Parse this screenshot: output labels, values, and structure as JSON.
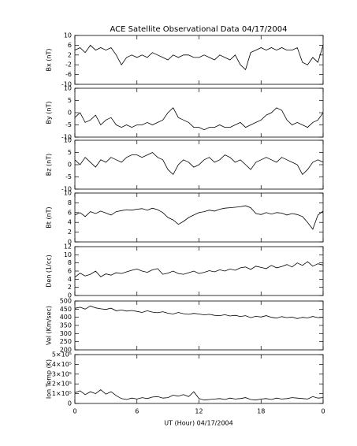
{
  "chart_data": {
    "type": "line",
    "title": "ACE Satellite Observational Data   04/17/2004",
    "xlabel": "UT (Hour)  04/17/2004",
    "color": "#000000",
    "x": [
      0,
      0.5,
      1,
      1.5,
      2,
      2.5,
      3,
      3.5,
      4,
      4.5,
      5,
      5.5,
      6,
      6.5,
      7,
      7.5,
      8,
      8.5,
      9,
      9.5,
      10,
      10.5,
      11,
      11.5,
      12,
      12.5,
      13,
      13.5,
      14,
      14.5,
      15,
      15.5,
      16,
      16.5,
      17,
      17.5,
      18,
      18.5,
      19,
      19.5,
      20,
      20.5,
      21,
      21.5,
      22,
      22.5,
      23,
      23.5,
      24
    ],
    "xlim": [
      0,
      24
    ],
    "xticks": [
      0,
      6,
      12,
      18,
      {
        "value": 24,
        "label": "0"
      }
    ],
    "panels": [
      {
        "ylabel": "Bx (nT)",
        "ylim": [
          -10,
          10
        ],
        "yticks": [
          -10,
          -6,
          -2,
          2,
          6,
          10
        ],
        "values": [
          4,
          5,
          3,
          6,
          4,
          5,
          4,
          5,
          2,
          -2,
          1,
          2,
          1,
          2,
          1,
          3,
          2,
          1,
          0,
          2,
          1,
          2,
          2,
          1,
          1,
          2,
          1,
          0,
          2,
          1,
          0,
          2,
          -2,
          -4,
          3,
          4,
          5,
          4,
          5,
          4,
          5,
          4,
          4,
          5,
          -1,
          -2,
          1,
          -1,
          6
        ]
      },
      {
        "ylabel": "By (nT)",
        "ylim": [
          -10,
          10
        ],
        "yticks": [
          -10,
          -5,
          0,
          5,
          10
        ],
        "values": [
          -2,
          0,
          -4,
          -3,
          -1,
          -5,
          -3,
          -2,
          -5,
          -6,
          -5,
          -6,
          -5,
          -5,
          -4,
          -5,
          -4,
          -3,
          0,
          2,
          -2,
          -3,
          -4,
          -6,
          -6,
          -7,
          -6,
          -6,
          -5,
          -6,
          -6,
          -5,
          -4,
          -6,
          -5,
          -4,
          -3,
          -1,
          0,
          2,
          1,
          -3,
          -5,
          -4,
          -5,
          -6,
          -4,
          -3,
          0
        ]
      },
      {
        "ylabel": "Bz (nT)",
        "ylim": [
          -10,
          10
        ],
        "yticks": [
          -10,
          -5,
          0,
          5,
          10
        ],
        "values": [
          2,
          0,
          3,
          1,
          -1,
          2,
          1,
          3,
          2,
          1,
          3,
          4,
          4,
          3,
          4,
          5,
          3,
          2,
          -2,
          -4,
          0,
          2,
          1,
          -1,
          0,
          2,
          3,
          1,
          2,
          4,
          3,
          1,
          2,
          0,
          -2,
          1,
          2,
          3,
          2,
          1,
          3,
          2,
          1,
          0,
          -4,
          -2,
          1,
          2,
          1
        ]
      },
      {
        "ylabel": "Bt (nT)",
        "ylim": [
          0,
          10
        ],
        "yticks": [
          0,
          2,
          4,
          6,
          8,
          10
        ],
        "values": [
          5.5,
          6,
          5.2,
          6.2,
          5.8,
          6.3,
          5.9,
          5.5,
          6.2,
          6.4,
          6.6,
          6.5,
          6.7,
          6.8,
          6.5,
          6.9,
          6.6,
          6,
          5,
          4.5,
          3.6,
          4.2,
          5,
          5.5,
          6,
          6.2,
          6.5,
          6.3,
          6.7,
          6.9,
          7,
          7.1,
          7.2,
          7.4,
          7,
          5.8,
          5.6,
          6,
          5.7,
          6,
          5.9,
          5.5,
          5.8,
          5.6,
          5.2,
          4,
          2.6,
          5.5,
          6.3
        ]
      },
      {
        "ylabel": "Den (1/cc)",
        "ylim": [
          0,
          12
        ],
        "yticks": [
          0,
          2,
          4,
          6,
          8,
          10,
          12
        ],
        "values": [
          4.5,
          5.5,
          4.8,
          5.2,
          6,
          4.6,
          5.3,
          5,
          5.6,
          5.4,
          5.8,
          6.2,
          6.5,
          6,
          5.7,
          6.3,
          6.6,
          5.2,
          5.5,
          6,
          5.4,
          5.2,
          5.6,
          6,
          5.4,
          5.7,
          6.1,
          5.8,
          6.3,
          6,
          6.5,
          6.2,
          6.8,
          7,
          6.4,
          7.2,
          6.9,
          6.6,
          7.4,
          6.8,
          7.1,
          7.6,
          7,
          8,
          7.4,
          8.3,
          7.2,
          7.8,
          7.5
        ]
      },
      {
        "ylabel": "Vel (Km/sec)",
        "ylim": [
          200,
          500
        ],
        "yticks": [
          200,
          250,
          300,
          350,
          400,
          450,
          500
        ],
        "values": [
          455,
          462,
          450,
          470,
          458,
          452,
          448,
          456,
          440,
          445,
          438,
          442,
          436,
          430,
          440,
          432,
          428,
          434,
          425,
          420,
          430,
          422,
          418,
          424,
          420,
          415,
          418,
          412,
          410,
          416,
          408,
          412,
          405,
          410,
          398,
          406,
          402,
          410,
          400,
          395,
          404,
          398,
          402,
          392,
          400,
          396,
          405,
          398,
          400
        ]
      },
      {
        "ylabel": "Ion Temp (K)",
        "ylim": [
          0,
          500000
        ],
        "yticks": [
          0,
          {
            "value": 100000,
            "label": "1×10⁵"
          },
          {
            "value": 200000,
            "label": "2×10⁵"
          },
          {
            "value": 300000,
            "label": "3×10⁵"
          },
          {
            "value": 400000,
            "label": "4×10⁵"
          },
          {
            "value": 500000,
            "label": "5×10⁵"
          }
        ],
        "values": [
          110000,
          130000,
          90000,
          120000,
          100000,
          140000,
          95000,
          120000,
          80000,
          50000,
          40000,
          55000,
          45000,
          60000,
          50000,
          65000,
          70000,
          55000,
          60000,
          85000,
          75000,
          90000,
          70000,
          120000,
          50000,
          35000,
          40000,
          45000,
          50000,
          40000,
          55000,
          45000,
          50000,
          60000,
          40000,
          35000,
          45000,
          50000,
          40000,
          55000,
          45000,
          50000,
          60000,
          55000,
          50000,
          45000,
          70000,
          55000,
          60000
        ]
      }
    ]
  }
}
